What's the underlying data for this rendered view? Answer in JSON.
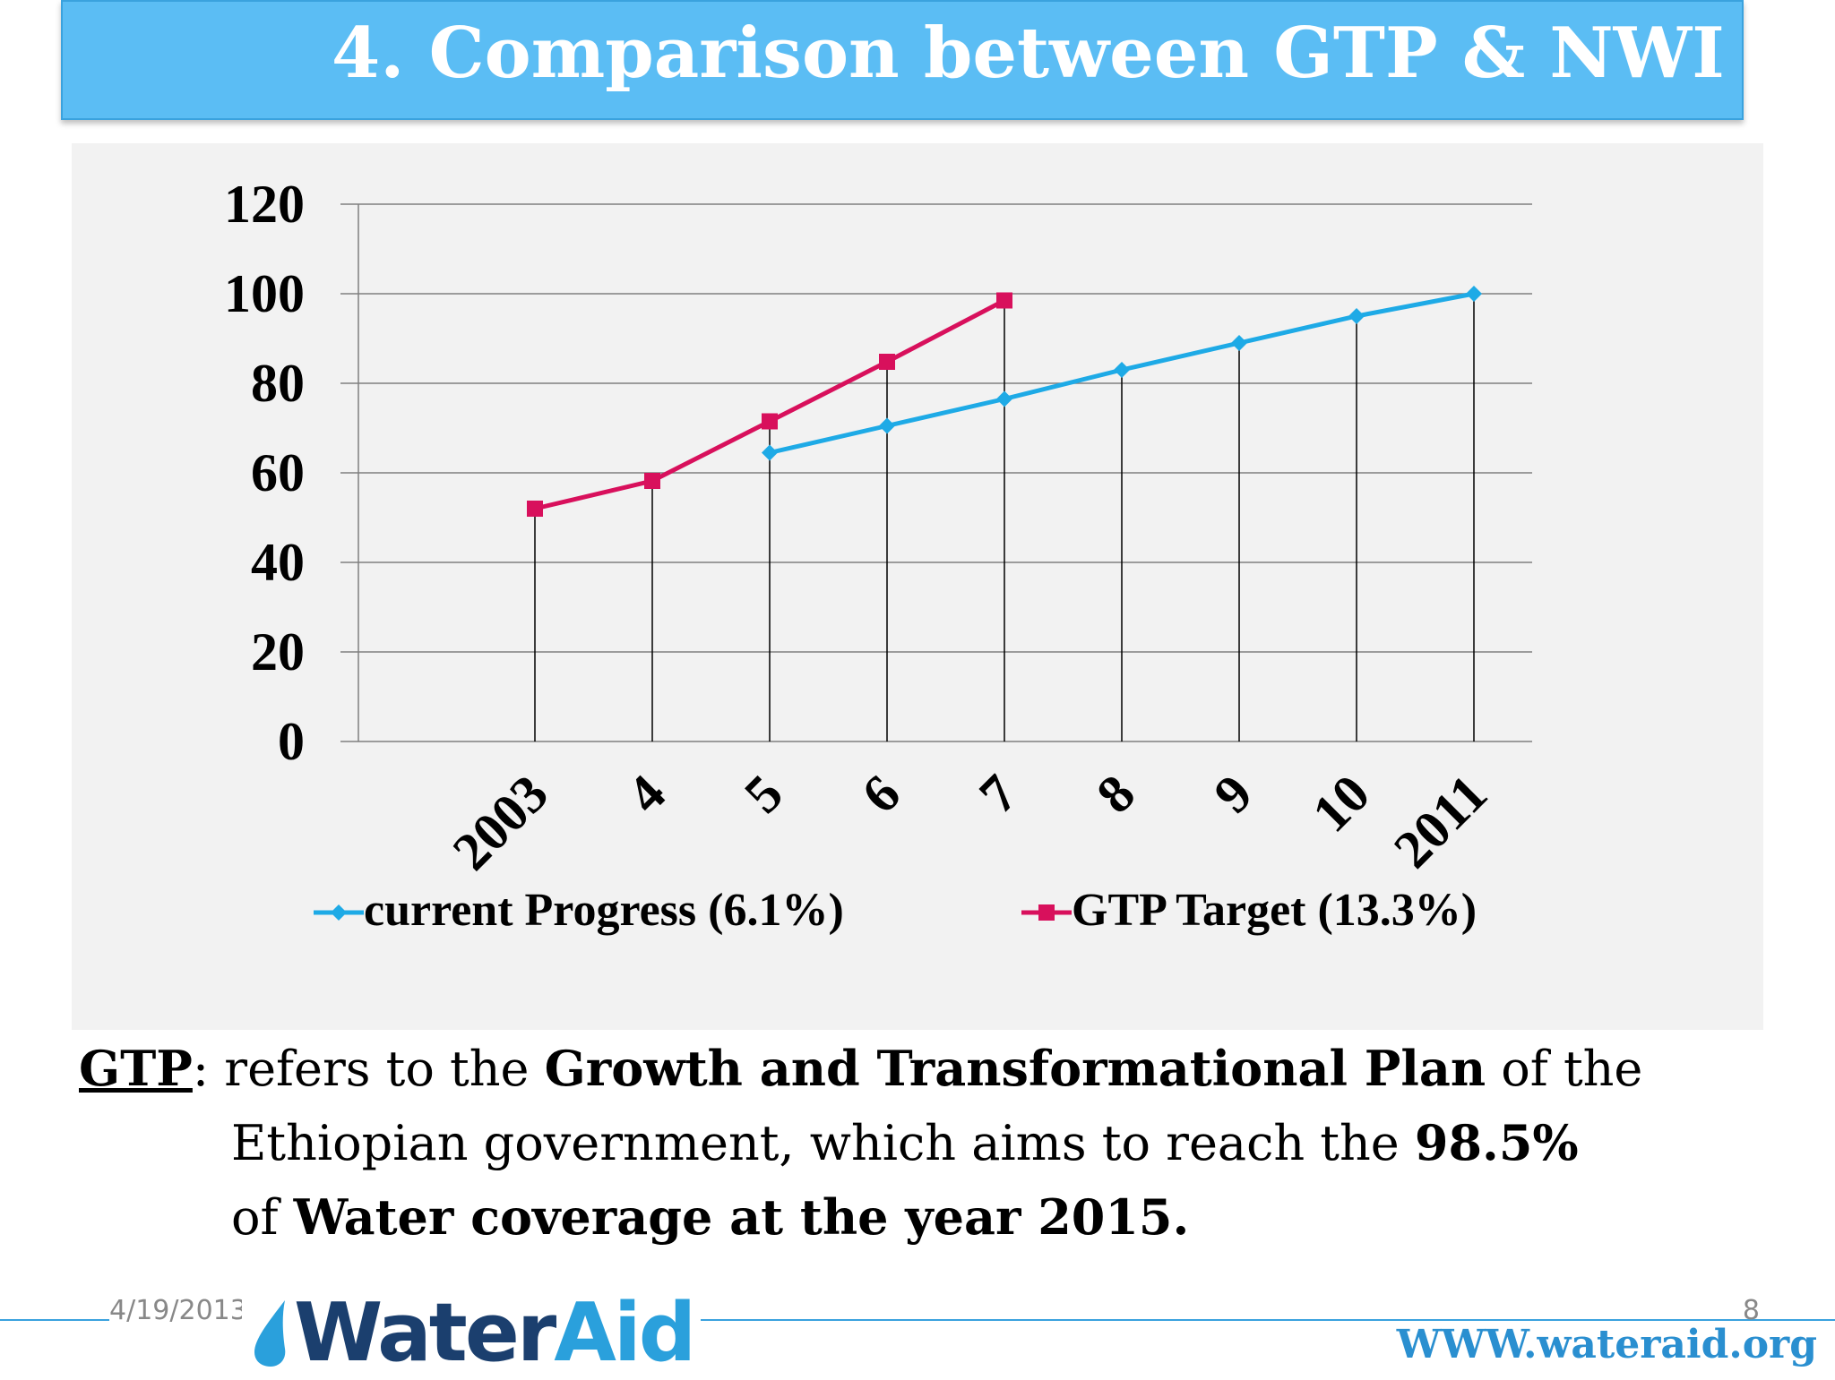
{
  "slide": {
    "title": "4. Comparison between GTP & NWI",
    "footer_date": "4/19/2013",
    "page_number": "8",
    "logo_text_water": "Water",
    "logo_text_aid": "Aid",
    "url": "WWW.wateraid.org"
  },
  "description": {
    "term": "GTP",
    "p1": ": refers to the ",
    "bold1": "Growth and Transformational Plan",
    "p2": " of the",
    "p3": "Ethiopian government, which aims to reach the ",
    "bold2": "98.5%",
    "p4": "of ",
    "bold3": "Water coverage at the year 2015."
  },
  "colors": {
    "current_progress": "#1eaae6",
    "gtp_target": "#d8105c",
    "grid": "#7f7f7f",
    "drop_line": "#000000"
  },
  "chart_data": {
    "type": "line",
    "categories": [
      "2003",
      "4",
      "5",
      "6",
      "7",
      "8",
      "9",
      "10",
      "2011"
    ],
    "ylim": [
      0,
      120
    ],
    "yticks": [
      0,
      20,
      40,
      60,
      80,
      100,
      120
    ],
    "grid": true,
    "legend_position": "bottom",
    "series": [
      {
        "name": "current Progress (6.1%)",
        "marker": "diamond",
        "values": [
          null,
          null,
          64.5,
          70.5,
          76.5,
          83,
          89,
          95,
          100
        ]
      },
      {
        "name": "GTP Target (13.3%)",
        "marker": "square",
        "values": [
          52,
          58.2,
          71.5,
          84.8,
          98.5,
          null,
          null,
          null,
          null
        ]
      }
    ],
    "drop_lines": true
  }
}
